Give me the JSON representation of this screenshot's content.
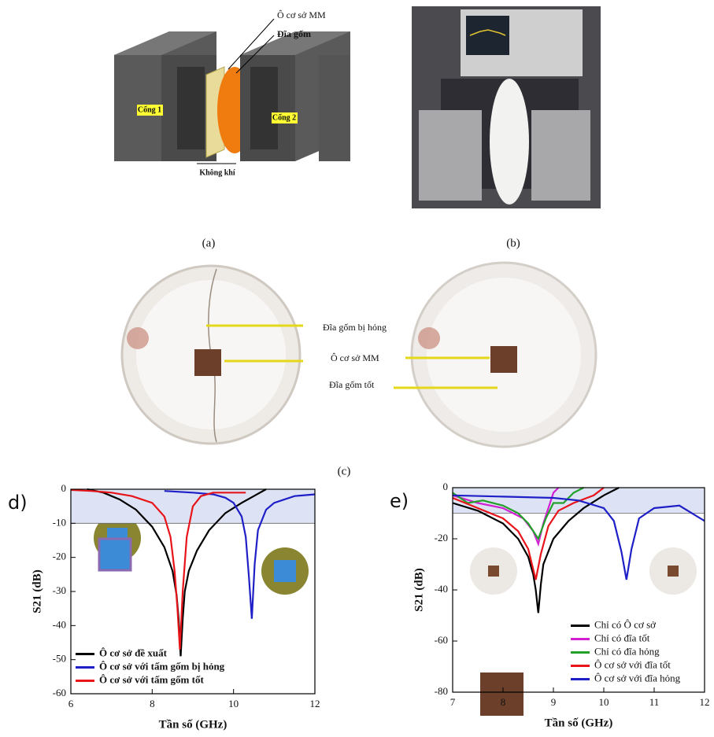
{
  "figure": {
    "panel_a": {
      "labels": [
        "Ô cơ sở MM",
        "Đĩa gốm",
        "Cổng 1",
        "Cổng 2",
        "Không khí"
      ],
      "caption": "(a)"
    },
    "panel_b": {
      "caption": "(b)"
    },
    "panel_c": {
      "labels": [
        "Đĩa gốm bị hỏng",
        "Ô cơ sở MM",
        "Đĩa gốm tốt"
      ],
      "caption": "(c)"
    }
  },
  "chart_data": [
    {
      "type": "line",
      "label": "d)",
      "xlabel": "Tần số (GHz)",
      "ylabel": "S21 (dB)",
      "xlim": [
        6,
        12
      ],
      "ylim": [
        -60,
        0
      ],
      "xticks": [
        6,
        8,
        10,
        12
      ],
      "yticks": [
        0,
        -10,
        -20,
        -30,
        -40,
        -50,
        -60
      ],
      "band": {
        "from": -10,
        "to": 0,
        "color": "#dde3f4"
      },
      "legend": "lower left",
      "series": [
        {
          "name": "Ô cơ sở đề xuất",
          "color": "#000000",
          "x": [
            6.4,
            6.8,
            7.2,
            7.6,
            8.0,
            8.3,
            8.5,
            8.6,
            8.65,
            8.7,
            8.75,
            8.8,
            8.9,
            9.1,
            9.4,
            9.8,
            10.2,
            10.5,
            10.8
          ],
          "values": [
            0,
            -1,
            -3,
            -6,
            -11,
            -17,
            -24,
            -31,
            -38,
            -49,
            -38,
            -30,
            -24,
            -18,
            -12,
            -7,
            -4,
            -2,
            0
          ]
        },
        {
          "name": "Ô cơ sở với tấm gốm bị hỏng",
          "color": "#1f1fc8",
          "x": [
            8.3,
            9,
            9.5,
            9.8,
            10,
            10.2,
            10.3,
            10.38,
            10.45,
            10.52,
            10.6,
            10.8,
            11,
            11.5,
            12
          ],
          "values": [
            -0.5,
            -1,
            -1.5,
            -2.5,
            -4,
            -8,
            -14,
            -26,
            -38,
            -22,
            -12,
            -6,
            -4,
            -2,
            -1.5
          ]
        },
        {
          "name": "Ô cơ sở với tấm gốm tốt",
          "color": "#e8141a",
          "x": [
            6,
            6.5,
            7,
            7.5,
            8,
            8.3,
            8.45,
            8.55,
            8.62,
            8.68,
            8.75,
            8.85,
            9,
            9.2,
            9.5,
            10,
            10.3
          ],
          "values": [
            -0.2,
            -0.5,
            -1,
            -2,
            -4,
            -8,
            -14,
            -24,
            -35,
            -47,
            -30,
            -14,
            -5,
            -2,
            -1,
            -1,
            -1
          ]
        }
      ]
    },
    {
      "type": "line",
      "label": "e)",
      "xlabel": "Tần số (GHz)",
      "ylabel": "S21 (dB)",
      "xlim": [
        7,
        12
      ],
      "ylim": [
        -80,
        0
      ],
      "xticks": [
        7,
        8,
        9,
        10,
        11,
        12
      ],
      "yticks": [
        0,
        -20,
        -40,
        -60,
        -80
      ],
      "band": {
        "from": -10,
        "to": 0,
        "color": "#dde3f4"
      },
      "legend": "lower right",
      "series": [
        {
          "name": "Chỉ có Ô cơ sở",
          "color": "#000000",
          "x": [
            7,
            7.5,
            8,
            8.3,
            8.5,
            8.6,
            8.65,
            8.7,
            8.75,
            8.8,
            9,
            9.3,
            9.6,
            10,
            10.3
          ],
          "values": [
            -6,
            -9,
            -14,
            -20,
            -27,
            -34,
            -40,
            -49,
            -38,
            -30,
            -20,
            -13,
            -8,
            -3,
            0
          ]
        },
        {
          "name": "Chỉ có đĩa tốt",
          "color": "#d21fd2",
          "x": [
            7,
            7.5,
            8,
            8.4,
            8.6,
            8.7,
            8.8,
            8.9,
            9,
            9.1
          ],
          "values": [
            -3,
            -6,
            -8,
            -12,
            -17,
            -22,
            -14,
            -8,
            -2,
            0
          ]
        },
        {
          "name": "Chỉ có đĩa hỏng",
          "color": "#22a02a",
          "x": [
            7,
            7.3,
            7.6,
            8,
            8.3,
            8.5,
            8.7,
            8.85,
            9,
            9.2,
            9.4,
            9.6
          ],
          "values": [
            -2,
            -6,
            -5,
            -7,
            -10,
            -14,
            -20,
            -12,
            -6,
            -6,
            -2,
            0
          ]
        },
        {
          "name": "Ô cơ sở với đĩa tốt",
          "color": "#e8141a",
          "x": [
            7,
            7.5,
            8,
            8.3,
            8.5,
            8.65,
            8.75,
            8.9,
            9.1,
            9.4,
            9.8,
            10
          ],
          "values": [
            -4,
            -8,
            -12,
            -17,
            -24,
            -36,
            -26,
            -15,
            -9,
            -6,
            -3,
            0
          ]
        },
        {
          "name": "Ô cơ sở với đĩa hỏng",
          "color": "#1f1fc8",
          "x": [
            7,
            8,
            9,
            9.5,
            10,
            10.2,
            10.35,
            10.45,
            10.55,
            10.7,
            11,
            11.5,
            12
          ],
          "values": [
            -3,
            -3.5,
            -4,
            -5,
            -8,
            -13,
            -25,
            -36,
            -24,
            -12,
            -8,
            -7,
            -13
          ]
        }
      ]
    }
  ]
}
